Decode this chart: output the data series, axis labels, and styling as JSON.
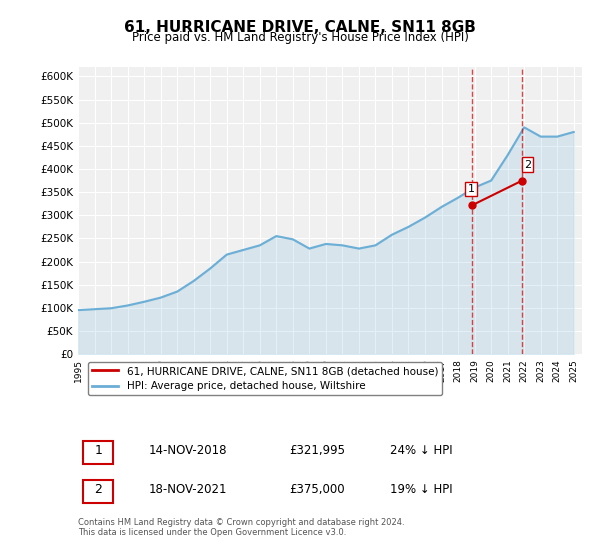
{
  "title": "61, HURRICANE DRIVE, CALNE, SN11 8GB",
  "subtitle": "Price paid vs. HM Land Registry's House Price Index (HPI)",
  "ylabel_ticks": [
    "£0",
    "£50K",
    "£100K",
    "£150K",
    "£200K",
    "£250K",
    "£300K",
    "£350K",
    "£400K",
    "£450K",
    "£500K",
    "£550K",
    "£600K"
  ],
  "ytick_values": [
    0,
    50000,
    100000,
    150000,
    200000,
    250000,
    300000,
    350000,
    400000,
    450000,
    500000,
    550000,
    600000
  ],
  "hpi_color": "#6baed6",
  "price_color": "#cc0000",
  "dashed_line_color": "#cc0000",
  "dashed_line_alpha": 0.5,
  "background_color": "#ffffff",
  "plot_bg_color": "#f0f0f0",
  "legend_label_price": "61, HURRICANE DRIVE, CALNE, SN11 8GB (detached house)",
  "legend_label_hpi": "HPI: Average price, detached house, Wiltshire",
  "transaction1_label": "1",
  "transaction1_date": "14-NOV-2018",
  "transaction1_price": "£321,995",
  "transaction1_note": "24% ↓ HPI",
  "transaction2_label": "2",
  "transaction2_date": "18-NOV-2021",
  "transaction2_price": "£375,000",
  "transaction2_note": "19% ↓ HPI",
  "footnote": "Contains HM Land Registry data © Crown copyright and database right 2024.\nThis data is licensed under the Open Government Licence v3.0.",
  "hpi_years": [
    1995,
    1996,
    1997,
    1998,
    1999,
    2000,
    2001,
    2002,
    2003,
    2004,
    2005,
    2006,
    2007,
    2008,
    2009,
    2010,
    2011,
    2012,
    2013,
    2014,
    2015,
    2016,
    2017,
    2018,
    2019,
    2020,
    2021,
    2022,
    2023,
    2024,
    2025
  ],
  "hpi_values": [
    95000,
    97000,
    99000,
    105000,
    113000,
    122000,
    135000,
    158000,
    185000,
    215000,
    225000,
    235000,
    255000,
    248000,
    228000,
    238000,
    235000,
    228000,
    235000,
    258000,
    275000,
    295000,
    318000,
    338000,
    360000,
    375000,
    430000,
    490000,
    470000,
    470000,
    480000
  ],
  "transaction1_x": 2018.87,
  "transaction1_y": 321995,
  "transaction2_x": 2021.88,
  "transaction2_y": 375000,
  "vline1_x": 2018.87,
  "vline2_x": 2021.88,
  "xlim": [
    1995,
    2025.5
  ],
  "ylim": [
    0,
    620000
  ]
}
